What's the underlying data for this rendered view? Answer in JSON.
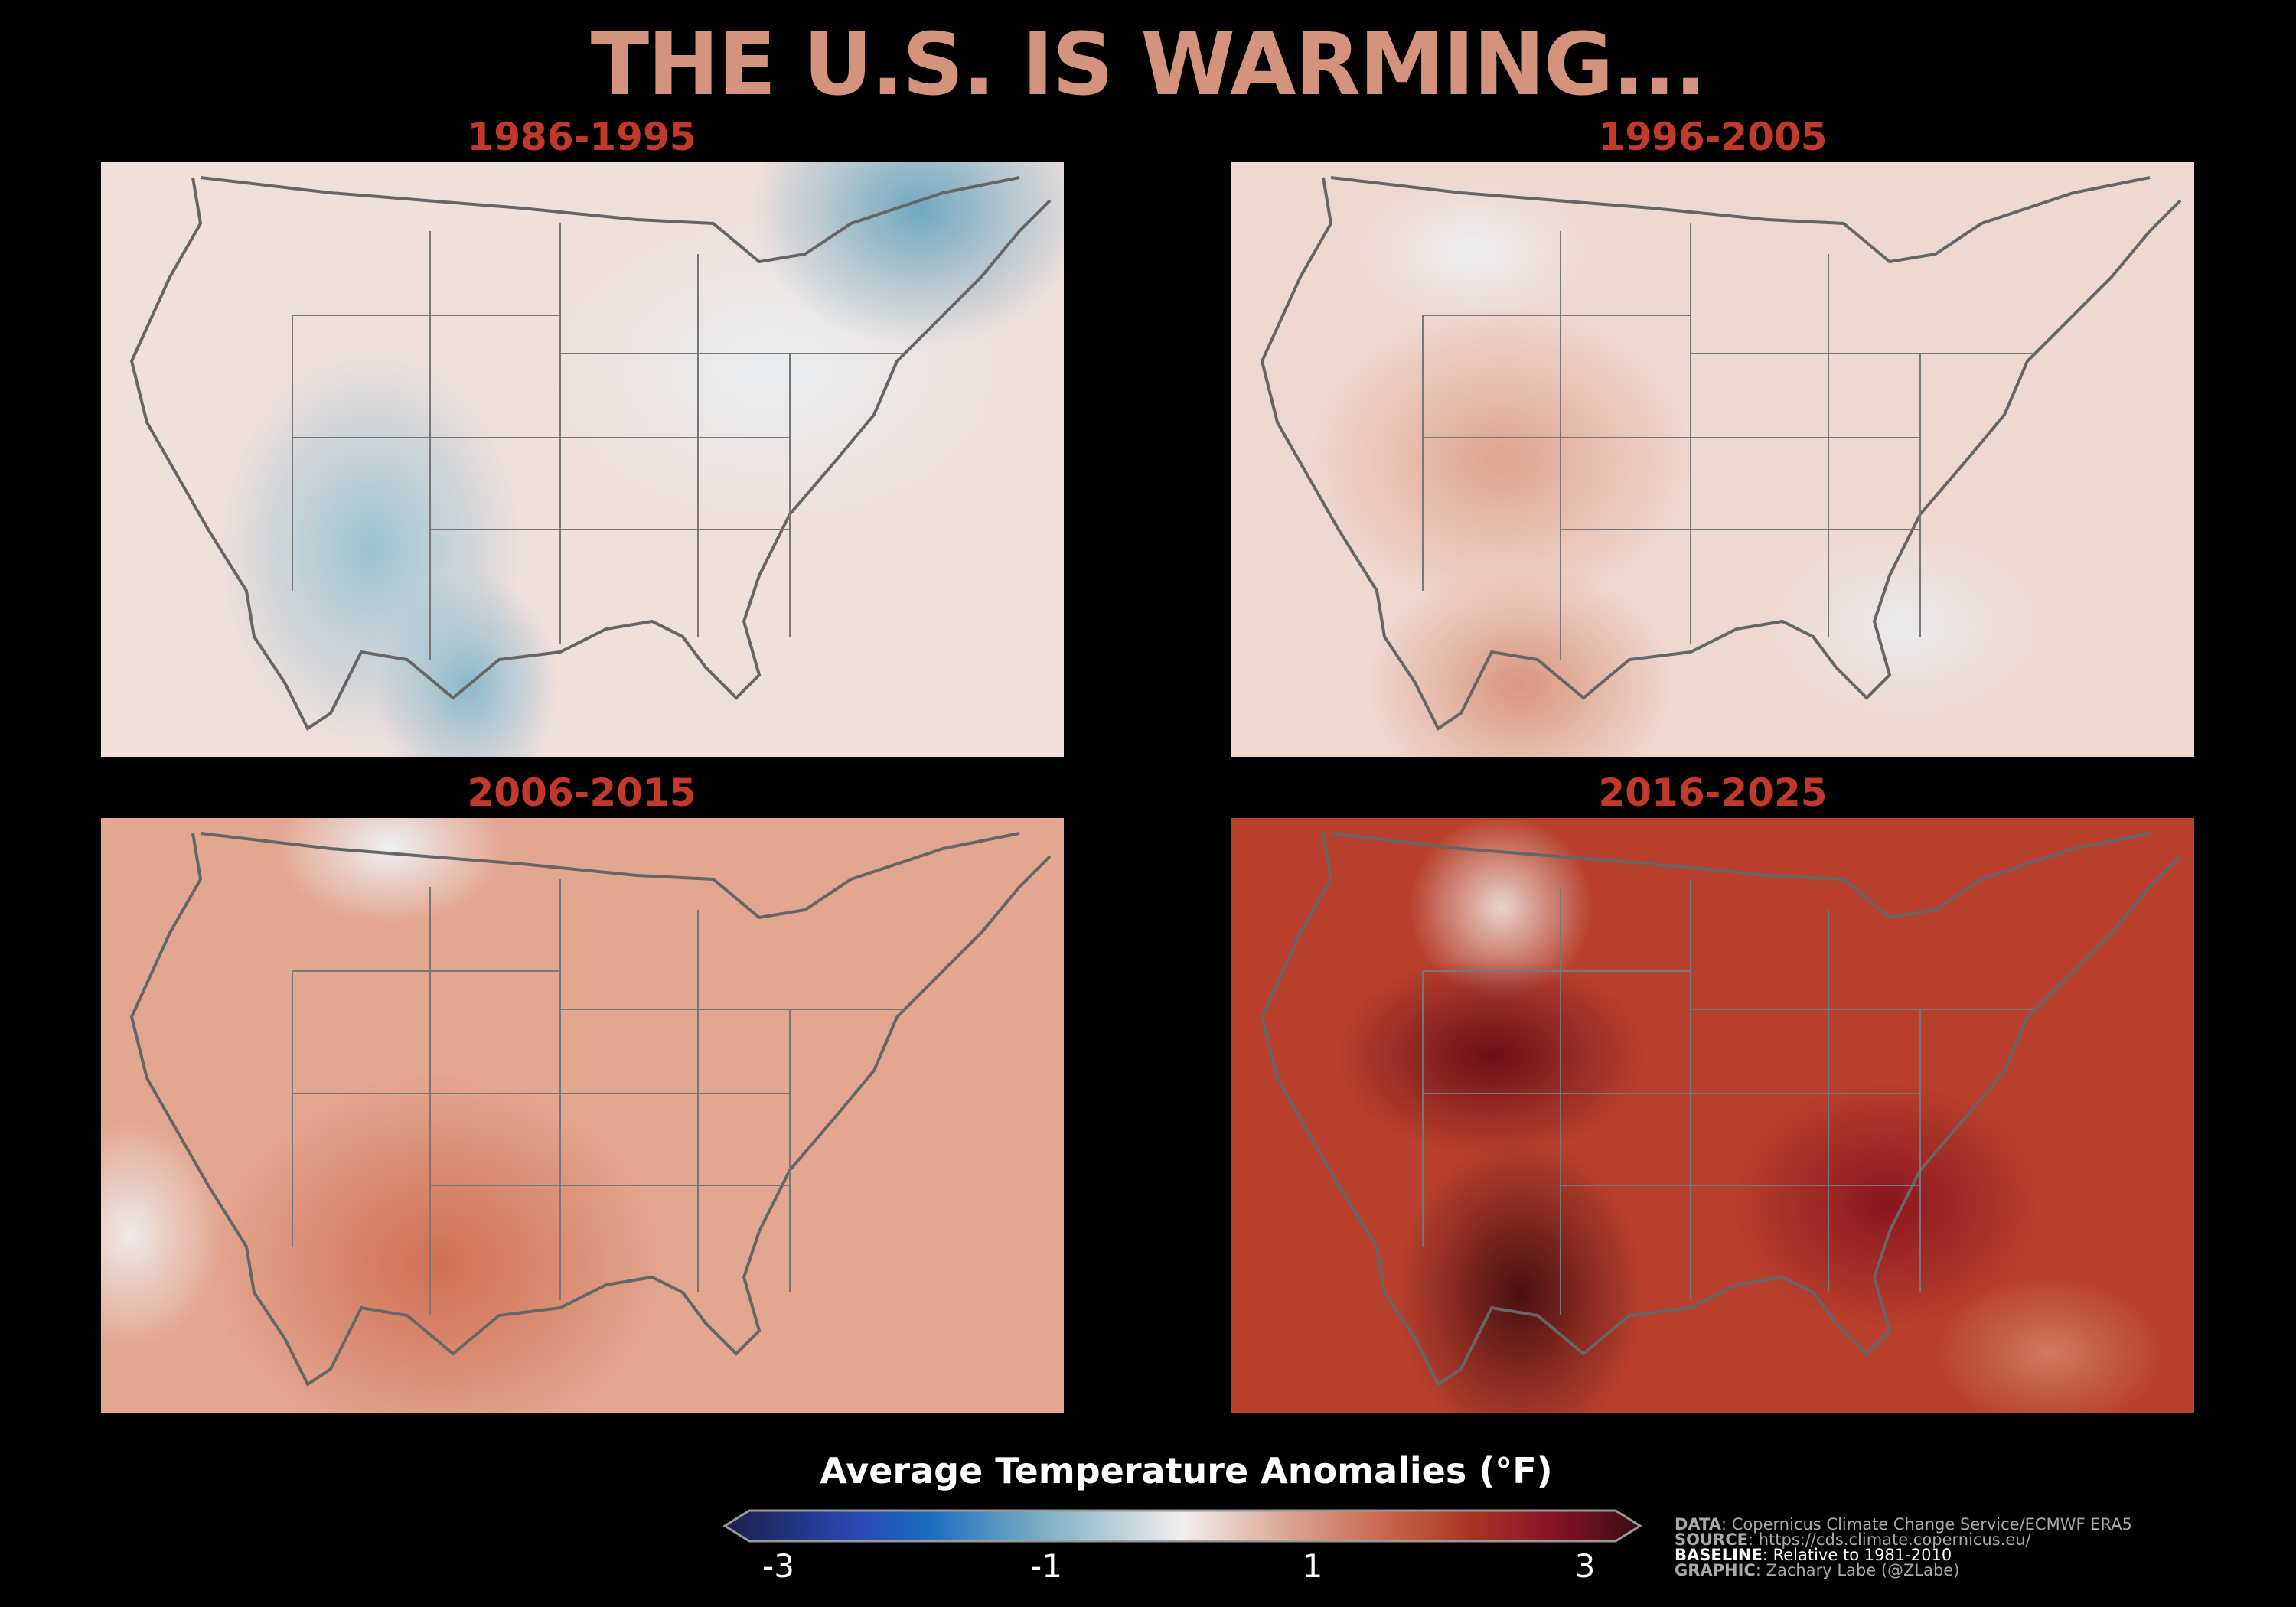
{
  "title": "THE U.S. IS WARMING...",
  "panels": [
    {
      "label": "1986-1995",
      "base": "#efe0dc"
    },
    {
      "label": "1996-2005",
      "base": "#efd8d0"
    },
    {
      "label": "2006-2015",
      "base": "#e3a690"
    },
    {
      "label": "2016-2025",
      "base": "#b8402c"
    }
  ],
  "colorbar": {
    "title": "Average Temperature Anomalies (°F)",
    "ticks": [
      "-3",
      "-1",
      "1",
      "3"
    ],
    "range": [
      -3,
      3
    ]
  },
  "credits": [
    {
      "key": "DATA",
      "value": ": Copernicus Climate Change Service/ECMWF ERA5"
    },
    {
      "key": "SOURCE",
      "value": ": https://cds.climate.copernicus.eu/"
    },
    {
      "key": "BASELINE",
      "value": ": Relative to 1981-2010"
    },
    {
      "key": "GRAPHIC",
      "value": ": Zachary Labe (@ZLabe)"
    }
  ]
}
